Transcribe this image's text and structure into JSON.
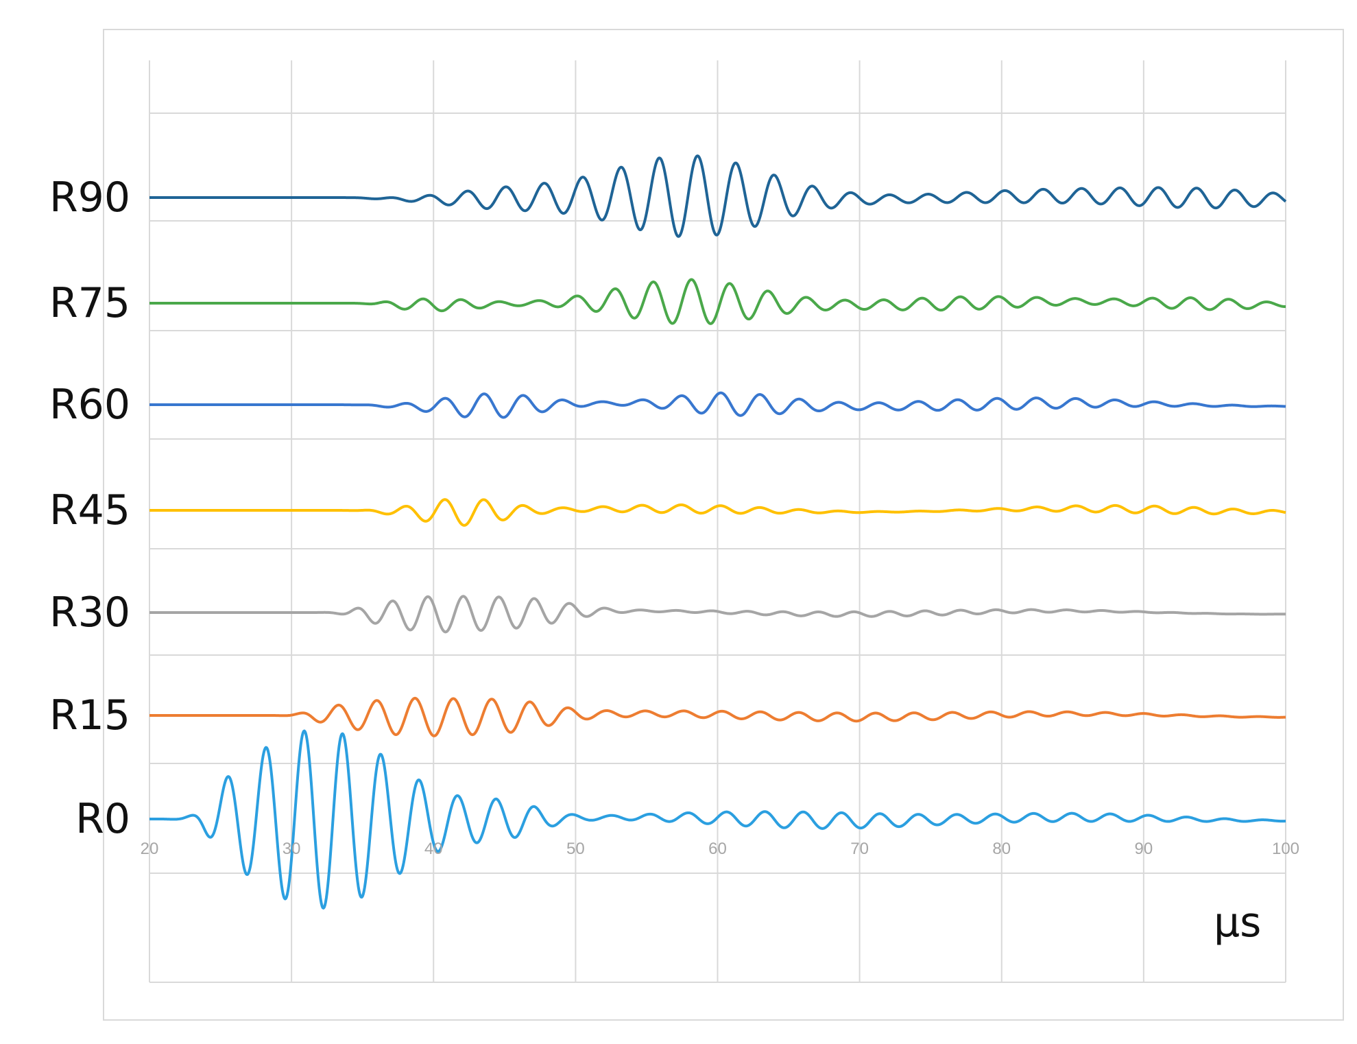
{
  "chart_data": {
    "type": "line",
    "title": "",
    "xlabel": "µs",
    "ylabel": "",
    "xlim": [
      20,
      100
    ],
    "x_ticks": [
      "20",
      "30",
      "40",
      "50",
      "60",
      "70",
      "80",
      "90",
      "100"
    ],
    "grid": true,
    "legend": "none",
    "series_layout": "vertically offset stacked traces, label at left of each baseline",
    "series": [
      {
        "name": "R90",
        "color": "#1f6496",
        "onset": 35,
        "amplitude": 0.8,
        "freq": 0.37,
        "packets": [
          [
            58,
            5.5,
            1.0
          ],
          [
            45,
            4,
            0.22
          ],
          [
            84,
            9,
            0.16
          ],
          [
            95,
            5,
            0.16
          ]
        ]
      },
      {
        "name": "R75",
        "color": "#4aa84a",
        "onset": 36,
        "amplitude": 0.8,
        "freq": 0.37,
        "packets": [
          [
            58,
            5,
            0.55
          ],
          [
            40,
            3,
            0.15
          ],
          [
            77,
            6,
            0.16
          ],
          [
            94,
            4,
            0.14
          ]
        ]
      },
      {
        "name": "R60",
        "color": "#3877cf",
        "onset": 35,
        "amplitude": 0.8,
        "freq": 0.36,
        "packets": [
          [
            44,
            3.5,
            0.3
          ],
          [
            61,
            4,
            0.27
          ],
          [
            80,
            8,
            0.14
          ]
        ]
      },
      {
        "name": "R45",
        "color": "#ffc000",
        "onset": 35,
        "amplitude": 0.8,
        "freq": 0.36,
        "packets": [
          [
            42,
            3,
            0.33
          ],
          [
            58,
            6,
            0.1
          ],
          [
            90,
            7,
            0.09
          ]
        ]
      },
      {
        "name": "R30",
        "color": "#a5a5a5",
        "onset": 34,
        "amplitude": 0.8,
        "freq": 0.4,
        "packets": [
          [
            40,
            4,
            0.42
          ],
          [
            47,
            3,
            0.25
          ],
          [
            72,
            10,
            0.06
          ]
        ]
      },
      {
        "name": "R15",
        "color": "#ed7d31",
        "onset": 31,
        "amplitude": 0.8,
        "freq": 0.37,
        "packets": [
          [
            39,
            5.5,
            0.45
          ],
          [
            46,
            2.5,
            0.15
          ],
          [
            68,
            14,
            0.1
          ]
        ]
      },
      {
        "name": "R0",
        "color": "#2b9fe0",
        "onset": 24,
        "amplitude": 0.8,
        "freq": 0.37,
        "packets": [
          [
            32,
            5.5,
            2.2
          ],
          [
            45,
            2.5,
            0.35
          ],
          [
            66,
            8,
            0.2
          ],
          [
            86,
            7,
            0.09
          ]
        ]
      }
    ]
  }
}
